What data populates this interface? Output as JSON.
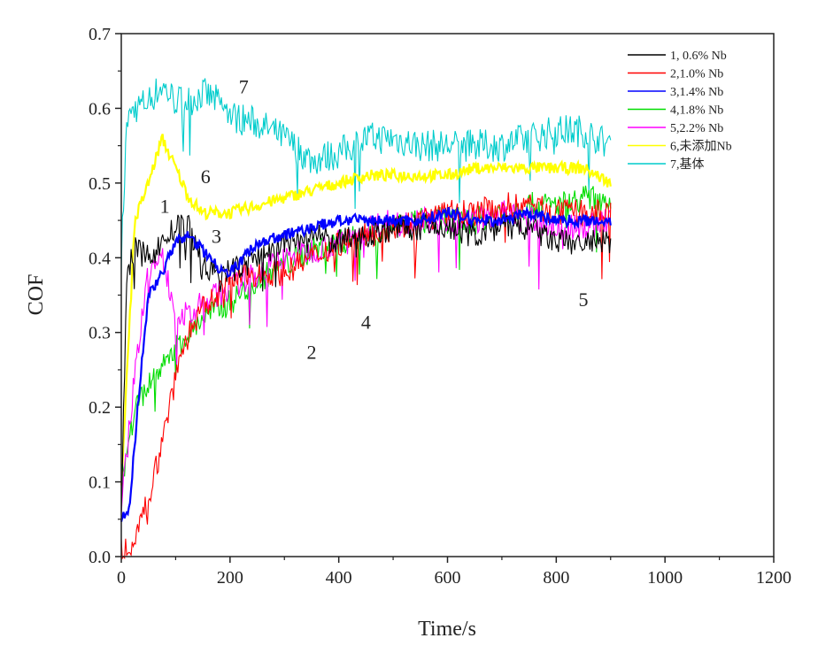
{
  "chart_data": {
    "type": "line",
    "title": "",
    "xlabel": "Time/s",
    "ylabel": "COF",
    "xlim": [
      0,
      1200
    ],
    "ylim": [
      0,
      0.7
    ],
    "xticks": [
      "0",
      "200",
      "400",
      "600",
      "800",
      "1000",
      "1200"
    ],
    "yticks": [
      "0.0",
      "0.1",
      "0.2",
      "0.3",
      "0.4",
      "0.5",
      "0.6",
      "0.7"
    ],
    "grid": false,
    "legend_position": "top-right",
    "series": [
      {
        "name": "1, 0.6% Nb",
        "color": "#000000",
        "x": [
          0,
          10,
          25,
          50,
          75,
          100,
          125,
          150,
          175,
          200,
          250,
          300,
          350,
          400,
          450,
          500,
          550,
          600,
          650,
          700,
          750,
          800,
          850,
          900
        ],
        "y": [
          0.05,
          0.38,
          0.41,
          0.4,
          0.42,
          0.44,
          0.44,
          0.39,
          0.38,
          0.38,
          0.4,
          0.42,
          0.43,
          0.42,
          0.43,
          0.44,
          0.44,
          0.44,
          0.43,
          0.44,
          0.44,
          0.42,
          0.42,
          0.42
        ]
      },
      {
        "name": "2,1.0% Nb",
        "color": "#ff0000",
        "x": [
          0,
          25,
          50,
          75,
          100,
          125,
          150,
          175,
          200,
          250,
          300,
          350,
          400,
          450,
          500,
          550,
          600,
          650,
          700,
          750,
          800,
          850,
          900
        ],
        "y": [
          0.01,
          0.02,
          0.08,
          0.15,
          0.25,
          0.3,
          0.33,
          0.35,
          0.37,
          0.38,
          0.38,
          0.4,
          0.42,
          0.43,
          0.44,
          0.45,
          0.46,
          0.46,
          0.47,
          0.47,
          0.46,
          0.46,
          0.46
        ]
      },
      {
        "name": "3,1.4% Nb",
        "color": "#0000ff",
        "x": [
          0,
          15,
          30,
          50,
          75,
          100,
          125,
          150,
          175,
          200,
          225,
          250,
          300,
          350,
          400,
          450,
          500,
          550,
          600,
          650,
          700,
          750,
          800,
          850,
          900
        ],
        "y": [
          0.05,
          0.06,
          0.2,
          0.35,
          0.38,
          0.42,
          0.43,
          0.41,
          0.39,
          0.38,
          0.4,
          0.42,
          0.43,
          0.44,
          0.45,
          0.45,
          0.45,
          0.45,
          0.46,
          0.45,
          0.45,
          0.46,
          0.45,
          0.45,
          0.45
        ]
      },
      {
        "name": "4,1.8% Nb",
        "color": "#00dd00",
        "x": [
          0,
          25,
          50,
          75,
          100,
          125,
          150,
          200,
          250,
          300,
          350,
          400,
          450,
          500,
          550,
          600,
          650,
          700,
          750,
          800,
          850,
          900
        ],
        "y": [
          0.1,
          0.2,
          0.23,
          0.25,
          0.28,
          0.3,
          0.32,
          0.34,
          0.37,
          0.39,
          0.41,
          0.42,
          0.43,
          0.44,
          0.45,
          0.45,
          0.45,
          0.46,
          0.47,
          0.47,
          0.48,
          0.48
        ]
      },
      {
        "name": "5,2.2% Nb",
        "color": "#ff00ff",
        "x": [
          0,
          25,
          50,
          75,
          100,
          125,
          150,
          200,
          250,
          300,
          350,
          400,
          450,
          500,
          550,
          600,
          650,
          700,
          750,
          800,
          850,
          900
        ],
        "y": [
          0.06,
          0.25,
          0.38,
          0.4,
          0.33,
          0.32,
          0.34,
          0.36,
          0.38,
          0.4,
          0.41,
          0.42,
          0.44,
          0.45,
          0.45,
          0.45,
          0.45,
          0.46,
          0.45,
          0.44,
          0.44,
          0.45
        ]
      },
      {
        "name": "6,未添加Nb",
        "color": "#ffff00",
        "x": [
          0,
          25,
          50,
          75,
          100,
          125,
          150,
          200,
          250,
          300,
          350,
          400,
          450,
          500,
          550,
          600,
          650,
          700,
          750,
          800,
          850,
          900
        ],
        "y": [
          0.1,
          0.45,
          0.5,
          0.56,
          0.52,
          0.48,
          0.46,
          0.46,
          0.47,
          0.48,
          0.49,
          0.5,
          0.51,
          0.51,
          0.51,
          0.51,
          0.52,
          0.52,
          0.52,
          0.52,
          0.52,
          0.5
        ]
      },
      {
        "name": "7,基体",
        "color": "#00cccc",
        "x": [
          0,
          10,
          25,
          50,
          75,
          100,
          125,
          150,
          175,
          200,
          250,
          300,
          350,
          400,
          450,
          500,
          550,
          600,
          650,
          700,
          750,
          800,
          850,
          900
        ],
        "y": [
          0.4,
          0.58,
          0.6,
          0.61,
          0.63,
          0.61,
          0.61,
          0.62,
          0.61,
          0.59,
          0.58,
          0.56,
          0.53,
          0.54,
          0.56,
          0.56,
          0.55,
          0.55,
          0.55,
          0.55,
          0.56,
          0.57,
          0.57,
          0.55
        ]
      }
    ],
    "annotations": [
      {
        "text": "1",
        "x": 80,
        "y": 0.46
      },
      {
        "text": "2",
        "x": 350,
        "y": 0.265
      },
      {
        "text": "3",
        "x": 175,
        "y": 0.42
      },
      {
        "text": "4",
        "x": 450,
        "y": 0.305
      },
      {
        "text": "5",
        "x": 850,
        "y": 0.335
      },
      {
        "text": "6",
        "x": 155,
        "y": 0.5
      },
      {
        "text": "7",
        "x": 225,
        "y": 0.62
      }
    ]
  }
}
